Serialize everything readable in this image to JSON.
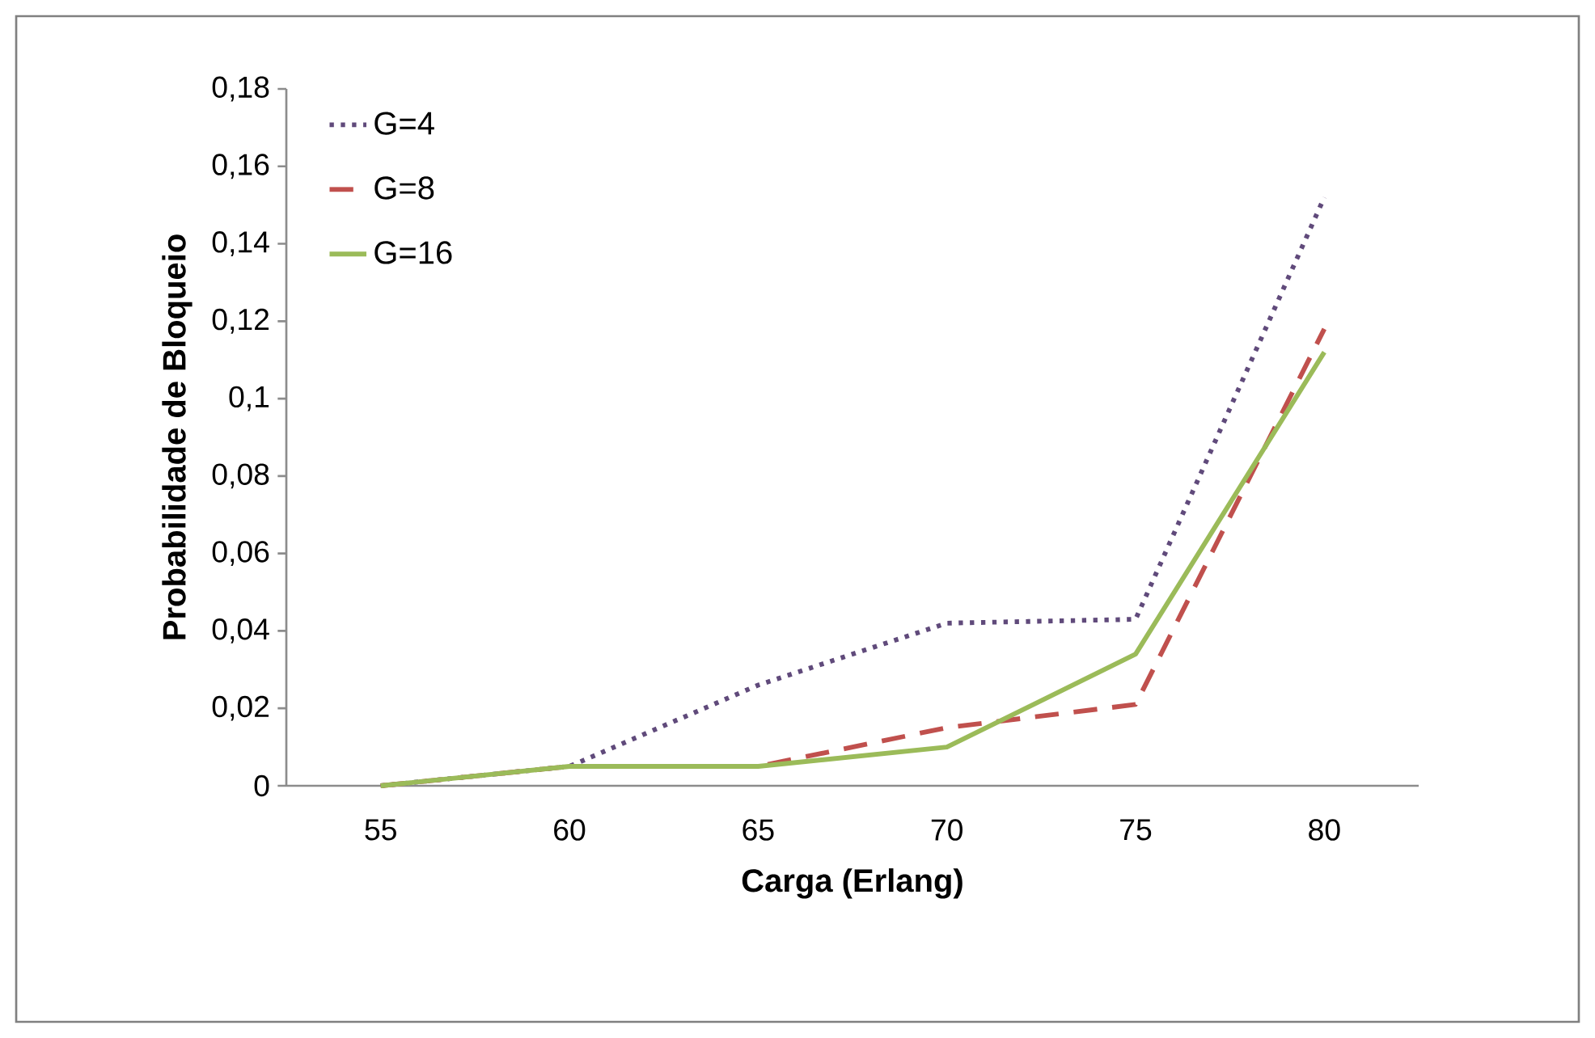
{
  "chart_data": {
    "type": "line",
    "xlabel": "Carga (Erlang)",
    "ylabel": "Probabilidade de Bloqueio",
    "categories": [
      "55",
      "60",
      "65",
      "70",
      "75",
      "80"
    ],
    "series": [
      {
        "name": "G=4",
        "color": "#604a7b",
        "line_style": "dotted",
        "values": [
          0,
          0.005,
          0.026,
          0.042,
          0.043,
          0.152
        ]
      },
      {
        "name": "G=8",
        "color": "#c0504d",
        "line_style": "dashed",
        "values": [
          0,
          0.005,
          0.005,
          0.015,
          0.021,
          0.118
        ]
      },
      {
        "name": "G=16",
        "color": "#9bbb59",
        "line_style": "solid",
        "values": [
          0,
          0.005,
          0.005,
          0.01,
          0.034,
          0.112
        ]
      }
    ],
    "ylim": [
      0,
      0.18
    ],
    "yticks": [
      {
        "value": 0,
        "label": "0"
      },
      {
        "value": 0.02,
        "label": "0,02"
      },
      {
        "value": 0.04,
        "label": "0,04"
      },
      {
        "value": 0.06,
        "label": "0,06"
      },
      {
        "value": 0.08,
        "label": "0,08"
      },
      {
        "value": 0.1,
        "label": "0,1"
      },
      {
        "value": 0.12,
        "label": "0,12"
      },
      {
        "value": 0.14,
        "label": "0,14"
      },
      {
        "value": 0.16,
        "label": "0,16"
      },
      {
        "value": 0.18,
        "label": "0,18"
      }
    ],
    "grid": false,
    "legend": "top left",
    "marker": "none"
  }
}
